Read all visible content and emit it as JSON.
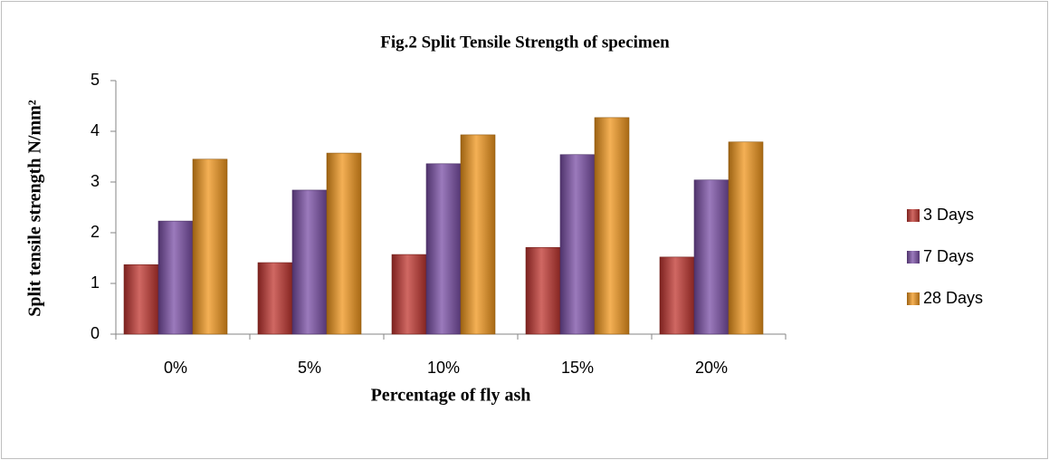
{
  "chart_data": {
    "type": "bar",
    "title": "Fig.2 Split Tensile Strength of specimen",
    "xlabel": "Percentage of fly ash",
    "ylabel": "Split tensile strength N/mm²",
    "categories": [
      "0%",
      "5%",
      "10%",
      "15%",
      "20%"
    ],
    "series": [
      {
        "name": "3 Days",
        "color": "#c0352f",
        "values": [
          1.37,
          1.41,
          1.57,
          1.71,
          1.52
        ]
      },
      {
        "name": "7 Days",
        "color": "#7a4ea6",
        "values": [
          2.23,
          2.84,
          3.36,
          3.54,
          3.04
        ]
      },
      {
        "name": "28 Days",
        "color": "#f0961c",
        "values": [
          3.45,
          3.57,
          3.93,
          4.27,
          3.79
        ]
      }
    ],
    "ylim": [
      0,
      5
    ],
    "yticks": [
      0,
      1,
      2,
      3,
      4,
      5
    ],
    "grid": false,
    "legend": "right"
  }
}
